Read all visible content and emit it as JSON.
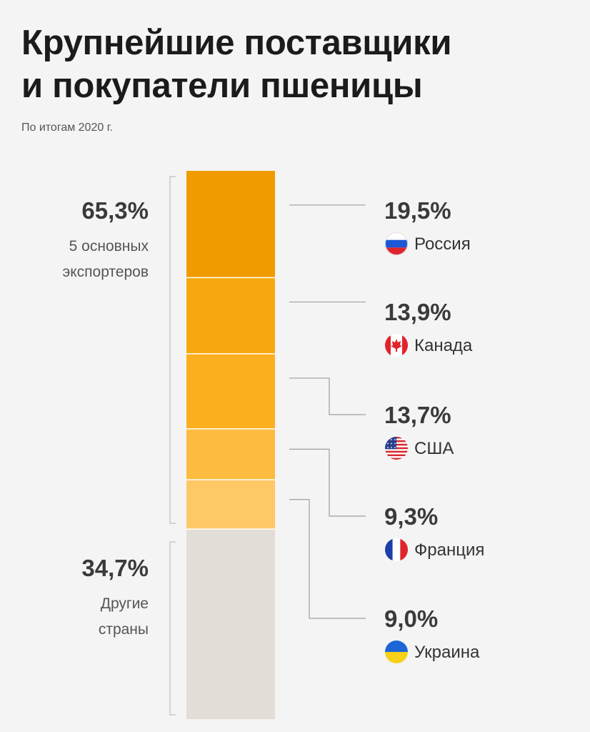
{
  "header": {
    "title_line1": "Крупнейшие поставщики",
    "title_line2": "и покупатели пшеницы",
    "subtitle": "По итогам 2020 г."
  },
  "chart_data": {
    "type": "stacked-bar",
    "groups": [
      {
        "value_label": "65,3%",
        "value": 65.3,
        "caption": [
          "5 основных",
          "экспортеров"
        ]
      },
      {
        "value_label": "34,7%",
        "value": 34.7,
        "caption": [
          "Другие",
          "страны"
        ]
      }
    ],
    "segments": [
      {
        "name": "Россия",
        "value": 19.5,
        "value_label": "19,5%",
        "color": "#f09c00",
        "flag": "russia-flag-icon"
      },
      {
        "name": "Канада",
        "value": 13.9,
        "value_label": "13,9%",
        "color": "#f7a80e",
        "flag": "canada-flag-icon"
      },
      {
        "name": "США",
        "value": 13.7,
        "value_label": "13,7%",
        "color": "#fbaf1f",
        "flag": "usa-flag-icon"
      },
      {
        "name": "Франция",
        "value": 9.3,
        "value_label": "9,3%",
        "color": "#fdbb3f",
        "flag": "france-flag-icon"
      },
      {
        "name": "Украина",
        "value": 9.0,
        "value_label": "9,0%",
        "color": "#ffc866",
        "flag": "ukraine-flag-icon"
      },
      {
        "name": "",
        "value": 34.7,
        "color": "#e2ddd7"
      }
    ]
  }
}
